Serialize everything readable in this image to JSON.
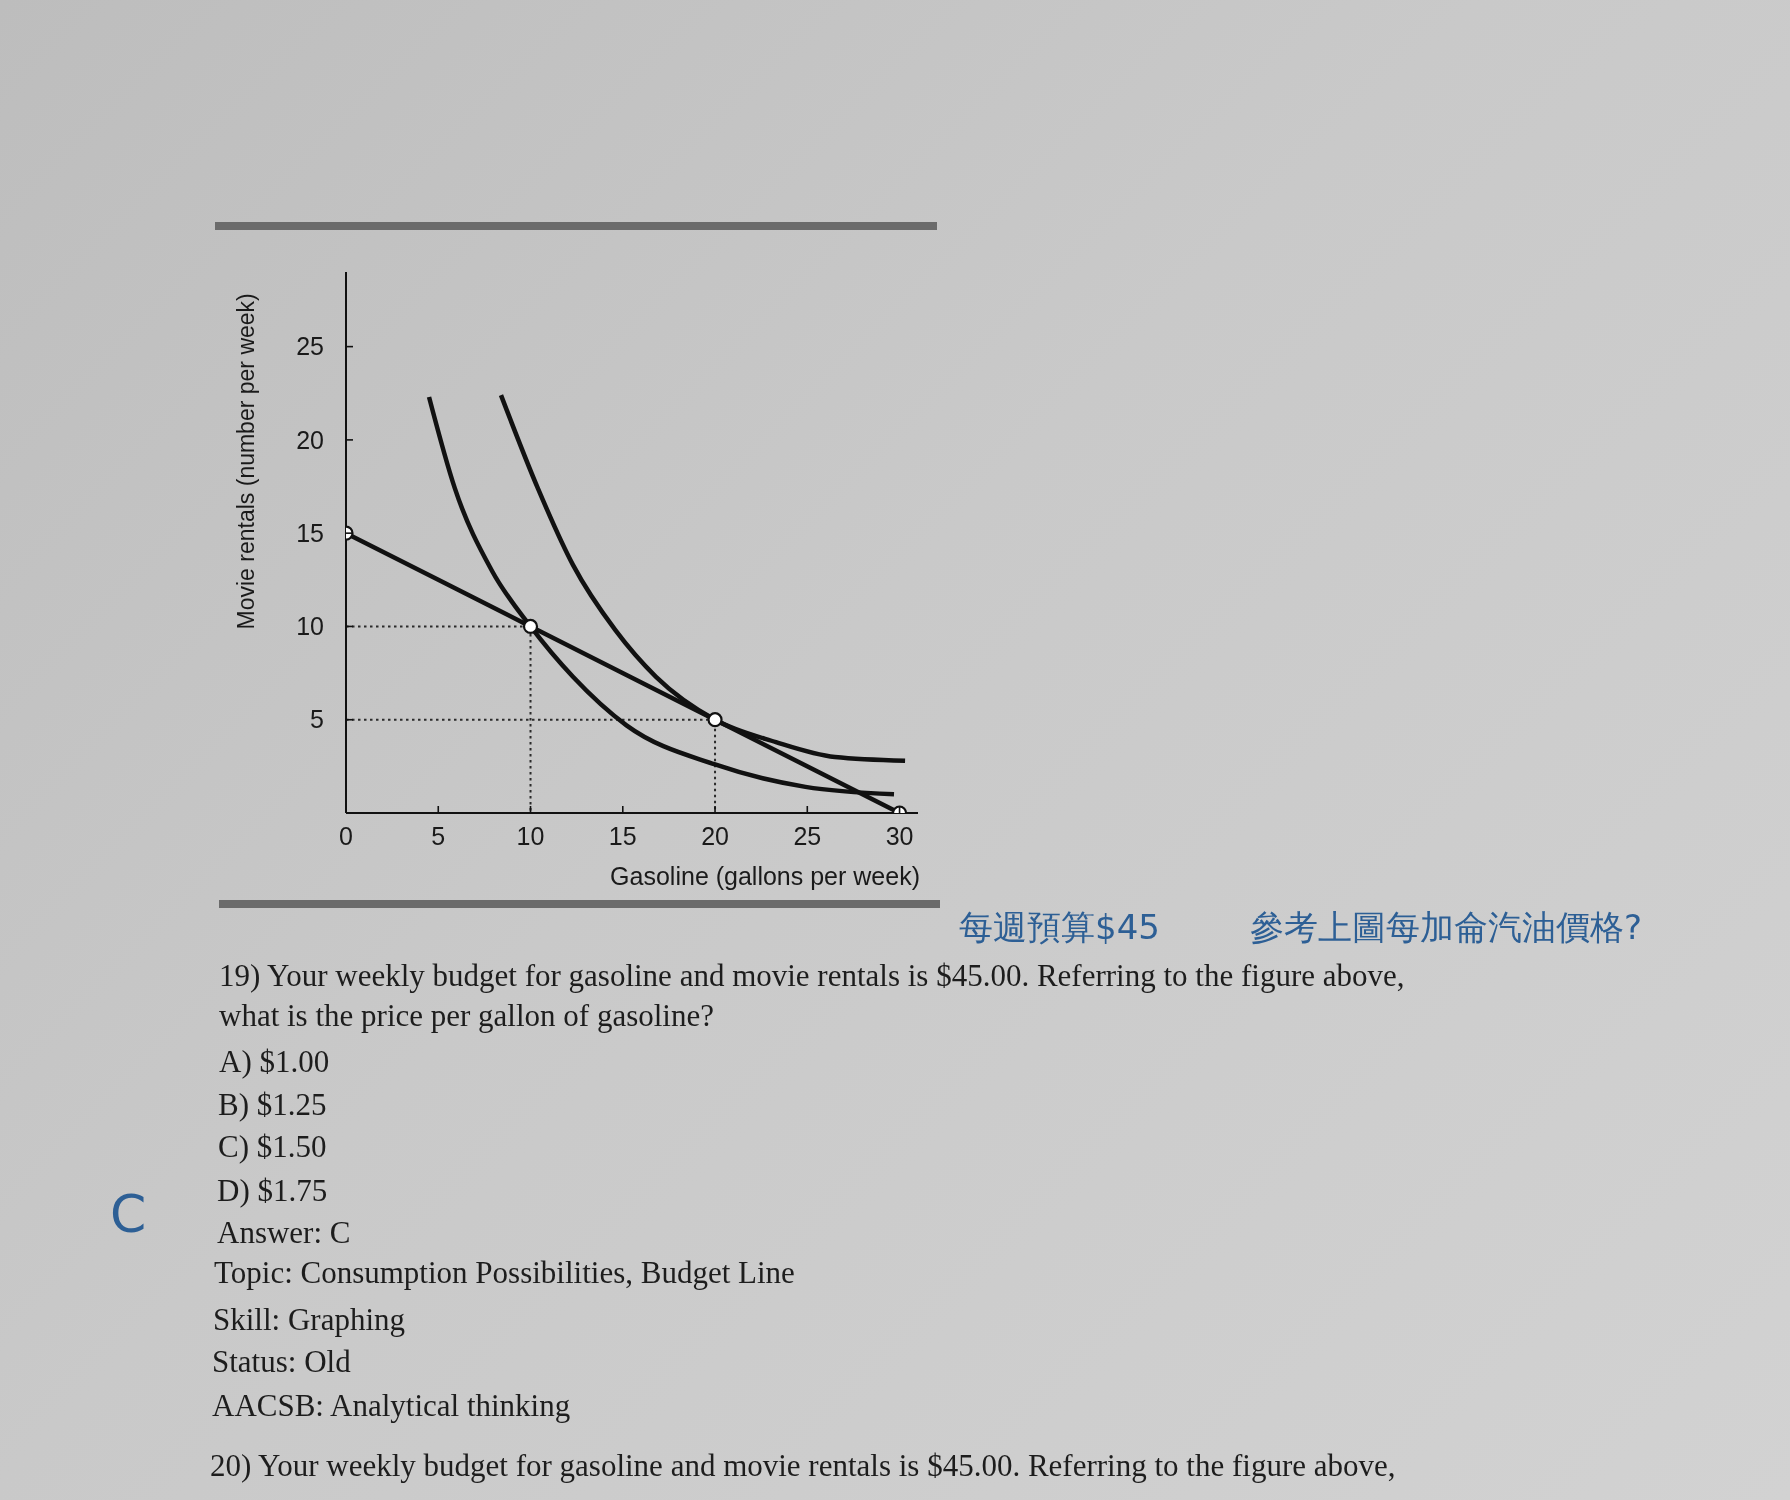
{
  "chart_data": {
    "type": "line",
    "xlabel": "Gasoline (gallons per week)",
    "ylabel": "Movie rentals (number per week)",
    "xlim": [
      0,
      31
    ],
    "xticks": [
      0,
      5,
      10,
      15,
      20,
      25,
      30
    ],
    "ylim": [
      0,
      29
    ],
    "yticks": [
      5,
      10,
      15,
      20,
      25
    ],
    "marker": "none",
    "line_style": "solid",
    "series": [
      {
        "color": "#2b2b2b",
        "x": [
          0,
          10,
          10
        ],
        "values": [
          10,
          10,
          0
        ],
        "line_style": "dotted"
      },
      {
        "color": "#2b2b2b",
        "x": [
          0,
          20,
          20
        ],
        "values": [
          5,
          5,
          0
        ],
        "line_style": "dotted"
      },
      {
        "color": "#111111",
        "x": [
          4.5,
          5.9,
          7.9,
          10,
          12.3,
          15.2,
          20,
          24.9,
          29.7
        ],
        "values": [
          22.3,
          17.4,
          13.0,
          10,
          7.3,
          4.7,
          2.6,
          1.4,
          1.0
        ]
      },
      {
        "color": "#111111",
        "x": [
          8.4,
          10.4,
          12.3,
          14.6,
          16.8,
          20,
          23.3,
          26.5,
          30.3
        ],
        "values": [
          22.4,
          17.4,
          13.3,
          9.8,
          7.3,
          5,
          3.8,
          3.0,
          2.8
        ]
      },
      {
        "color": "#111111",
        "x": [
          0,
          10,
          20,
          30
        ],
        "values": [
          15,
          10,
          5,
          0
        ],
        "marker": "circle"
      }
    ],
    "annotations": [
      "每週預算$45",
      "參考上圖每加侖汽油價格?",
      "19) Your weekly budget for gasoline and movie rentals is $45.00. Referring to the figure above, what is the price per gallon of gasoline?",
      "A) $1.00",
      "B) $1.25",
      "C) $1.50",
      "D) $1.75",
      "C",
      "Answer: C",
      "Topic: Consumption Possibilities, Budget Line",
      "Skill: Graphing",
      "Status: Old",
      "AACSB: Analytical thinking",
      "20) Your weekly budget for gasoline and movie rentals is $45.00. Referring to the figure above,"
    ]
  }
}
